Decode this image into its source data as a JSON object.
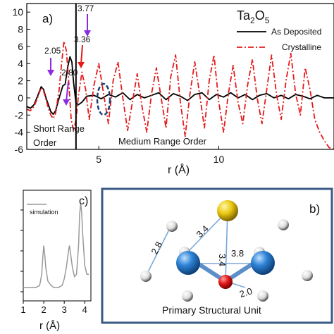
{
  "chart_data": [
    {
      "type": "line",
      "panel_label": "a)",
      "title": "Ta2O5",
      "title_main": "Ta",
      "title_sub1": "2",
      "title_mid": "O",
      "title_sub2": "5",
      "xlabel": "r (Å)",
      "ylabel": "",
      "xlim": [
        2.0,
        14.8
      ],
      "ylim": [
        -6,
        11
      ],
      "yticks": [
        -6,
        -4,
        -2,
        0,
        2,
        4,
        6,
        8,
        10
      ],
      "xticks": [
        5,
        10
      ],
      "legend": "top-right",
      "series": [
        {
          "name": "As Deposited",
          "color": "#000000",
          "style": "solid",
          "x": [
            2.0,
            2.15,
            2.3,
            2.45,
            2.6,
            2.7,
            2.8,
            2.9,
            3.0,
            3.1,
            3.2,
            3.35,
            3.5,
            3.6,
            3.7,
            3.8,
            3.88,
            3.95,
            4.05,
            4.15,
            4.3,
            4.5,
            4.8,
            5.1,
            5.4,
            5.7,
            6.0,
            6.3,
            6.6,
            6.9,
            7.2,
            7.5,
            7.8,
            8.1,
            8.4,
            8.7,
            9.0,
            9.3,
            9.6,
            9.9,
            10.2,
            10.5,
            10.8,
            11.1,
            11.4,
            11.7,
            12.0,
            12.3,
            12.6,
            12.9,
            13.2,
            13.5,
            13.8,
            14.1,
            14.4,
            14.8
          ],
          "y": [
            -1.0,
            -1.2,
            -0.8,
            0.2,
            1.3,
            1.0,
            0.0,
            -0.8,
            -1.6,
            -1.9,
            -1.5,
            0.0,
            1.4,
            1.6,
            3.5,
            4.8,
            4.2,
            1.8,
            -0.6,
            -0.8,
            -0.5,
            0.2,
            0.3,
            -0.1,
            0.4,
            0.1,
            0.6,
            -0.2,
            0.4,
            0.0,
            0.3,
            0.6,
            -0.2,
            0.5,
            0.2,
            -0.3,
            0.4,
            0.6,
            -0.2,
            0.4,
            0.1,
            0.6,
            0.0,
            0.4,
            -0.2,
            0.3,
            0.5,
            0.0,
            0.3,
            -0.1,
            0.4,
            0.2,
            -0.1,
            0.3,
            0.0,
            0.0
          ]
        },
        {
          "name": "Crystalline",
          "color": "#e41a1c",
          "style": "dash-dot",
          "x": [
            2.0,
            2.15,
            2.3,
            2.45,
            2.6,
            2.7,
            2.8,
            2.9,
            3.0,
            3.1,
            3.2,
            3.35,
            3.45,
            3.55,
            3.65,
            3.75,
            3.85,
            3.95,
            4.05,
            4.15,
            4.3,
            4.45,
            4.6,
            4.8,
            5.0,
            5.2,
            5.4,
            5.6,
            5.8,
            6.0,
            6.2,
            6.4,
            6.6,
            6.8,
            7.0,
            7.2,
            7.4,
            7.6,
            7.8,
            8.0,
            8.2,
            8.4,
            8.6,
            8.8,
            9.0,
            9.2,
            9.4,
            9.6,
            9.8,
            10.0,
            10.2,
            10.4,
            10.6,
            10.8,
            11.0,
            11.2,
            11.4,
            11.6,
            11.8,
            12.0,
            12.2,
            12.4,
            12.6,
            12.8,
            13.0,
            13.2,
            13.4,
            13.6,
            13.8,
            14.0,
            14.2,
            14.4,
            14.6,
            14.8
          ],
          "y": [
            -1.3,
            -1.5,
            -1.0,
            0.0,
            1.2,
            0.8,
            -0.2,
            -1.2,
            -2.0,
            -2.4,
            -1.8,
            1.0,
            4.0,
            6.6,
            5.5,
            1.8,
            -2.5,
            -3.8,
            -2.6,
            0.2,
            3.0,
            1.0,
            -2.5,
            1.5,
            4.0,
            0.5,
            -3.0,
            2.0,
            4.2,
            0.0,
            -3.8,
            -0.5,
            2.8,
            -1.0,
            -4.0,
            0.5,
            3.5,
            0.0,
            -3.5,
            2.5,
            5.0,
            -0.5,
            -4.5,
            0.5,
            4.2,
            0.5,
            -3.5,
            2.0,
            5.0,
            -0.5,
            -4.0,
            0.5,
            3.8,
            -0.5,
            -3.0,
            1.5,
            4.5,
            0.0,
            -3.0,
            1.0,
            5.0,
            0.5,
            -2.5,
            2.0,
            5.2,
            0.5,
            -2.0,
            3.5,
            1.0,
            -2.5,
            -4.0,
            -5.0,
            -5.8,
            -6.0
          ]
        }
      ],
      "peak_annotations": [
        {
          "x": 2.05,
          "label": "2.05",
          "arrow_color": "#8a2be2"
        },
        {
          "x": 2.8,
          "label": "2.80",
          "arrow_color": "#8a2be2"
        },
        {
          "x": 3.36,
          "label": "3.36",
          "arrow_color": "#e41a1c"
        },
        {
          "x": 3.77,
          "label": "3.77",
          "arrow_color": "#8a2be2"
        }
      ],
      "regions": [
        {
          "label_line1": "Short Range",
          "label_line2": "Order"
        },
        {
          "label_line1": "Medium Range Order",
          "label_line2": ""
        }
      ],
      "divider_x": 4.05
    },
    {
      "type": "line",
      "panel_label": "c)",
      "title": "",
      "xlabel": "r (Å)",
      "xlim": [
        1,
        4.3
      ],
      "xticks": [
        1,
        2,
        3,
        4
      ],
      "legend": "top-left",
      "series": [
        {
          "name": "simulation",
          "color": "#9a9a9a",
          "x": [
            1.0,
            1.3,
            1.6,
            1.8,
            1.9,
            1.95,
            2.0,
            2.05,
            2.1,
            2.2,
            2.35,
            2.5,
            2.7,
            2.9,
            3.0,
            3.1,
            3.2,
            3.25,
            3.3,
            3.4,
            3.5,
            3.6,
            3.7,
            3.75,
            3.8,
            3.85,
            3.9,
            4.0,
            4.1,
            4.2
          ],
          "y": [
            0.0,
            0.0,
            0.0,
            0.1,
            0.6,
            1.3,
            1.9,
            1.5,
            0.9,
            0.3,
            0.1,
            0.0,
            0.0,
            0.1,
            0.4,
            0.9,
            1.6,
            1.9,
            1.6,
            0.9,
            0.5,
            0.6,
            1.9,
            3.3,
            3.8,
            3.4,
            2.4,
            1.0,
            0.6,
            0.6
          ]
        }
      ]
    }
  ],
  "panel_b": {
    "label": "b)",
    "caption": "Primary Structural Unit",
    "distances": [
      "2.8",
      "3.4",
      "3.4",
      "3.8",
      "2.0"
    ],
    "colors": {
      "ta_atom": "#2f84d6",
      "o_red": "#e0191b",
      "o_yellow": "#e9c712",
      "o_white": "#ffffff",
      "border": "#3a5a86"
    }
  }
}
